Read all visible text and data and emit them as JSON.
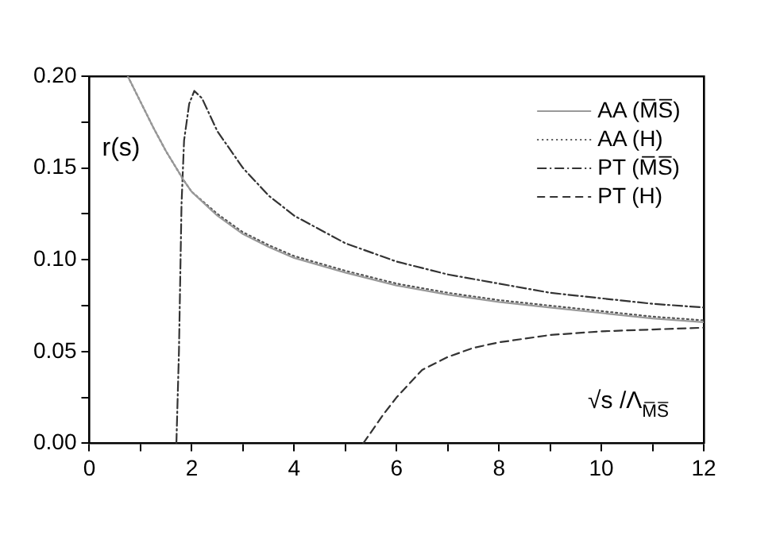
{
  "chart_data": {
    "type": "line",
    "ylabel": "r(s)",
    "xlabel": "√s /Λ$_{M̅S̅}$",
    "xlim": [
      0,
      12
    ],
    "xticks": [
      0,
      {
        "value": 1,
        "label": null
      },
      2,
      {
        "value": 3,
        "label": null
      },
      4,
      {
        "value": 5,
        "label": null
      },
      6,
      {
        "value": 7,
        "label": null
      },
      8,
      {
        "value": 9,
        "label": null
      },
      10,
      {
        "value": 11,
        "label": null
      },
      12
    ],
    "ylim": [
      0,
      0.2
    ],
    "yticks": [
      {
        "value": 0,
        "label": "0.00"
      },
      {
        "value": 0.025,
        "label": null
      },
      {
        "value": 0.05,
        "label": "0.05"
      },
      {
        "value": 0.075,
        "label": null
      },
      {
        "value": 0.1,
        "label": "0.10"
      },
      {
        "value": 0.125,
        "label": null
      },
      {
        "value": 0.15,
        "label": "0.15"
      },
      {
        "value": 0.175,
        "label": null
      },
      {
        "value": 0.2,
        "label": "0.20"
      }
    ],
    "grid": false,
    "legend": "top right",
    "marker": "none",
    "series": [
      {
        "name": "AA (M̅S̅)",
        "color": "#999999",
        "line_style": "solid",
        "x": [
          0.75,
          1,
          1.25,
          1.5,
          1.85,
          2,
          2.5,
          3,
          3.5,
          4,
          5,
          6,
          7,
          8,
          9,
          10,
          11,
          12
        ],
        "values": [
          0.2,
          0.186,
          0.172,
          0.159,
          0.143,
          0.137,
          0.124,
          0.114,
          0.107,
          0.101,
          0.093,
          0.086,
          0.081,
          0.077,
          0.074,
          0.071,
          0.068,
          0.066
        ]
      },
      {
        "name": "AA (H)",
        "color": "#555555",
        "line_style": "dotted",
        "x": [
          0.75,
          1,
          1.25,
          1.5,
          1.85,
          2,
          2.5,
          3,
          3.5,
          4,
          5,
          6,
          7,
          8,
          9,
          10,
          11,
          12
        ],
        "values": [
          0.2,
          0.186,
          0.172,
          0.159,
          0.143,
          0.137,
          0.125,
          0.115,
          0.108,
          0.102,
          0.094,
          0.087,
          0.082,
          0.078,
          0.075,
          0.072,
          0.069,
          0.067
        ]
      },
      {
        "name": "PT (M̅S̅)",
        "color": "#333333",
        "line_style": "dashdot",
        "x": [
          1.7,
          1.75,
          1.8,
          1.85,
          1.95,
          2.05,
          2.2,
          2.5,
          3,
          3.5,
          4,
          5,
          6,
          7,
          8,
          9,
          10,
          11,
          12
        ],
        "values": [
          0,
          0.05,
          0.13,
          0.165,
          0.185,
          0.192,
          0.188,
          0.17,
          0.15,
          0.135,
          0.124,
          0.109,
          0.099,
          0.092,
          0.087,
          0.082,
          0.079,
          0.076,
          0.074
        ]
      },
      {
        "name": "PT (H)",
        "color": "#333333",
        "line_style": "dashed",
        "x": [
          5.35,
          5.5,
          5.75,
          6,
          6.5,
          7,
          7.5,
          8,
          9,
          10,
          11,
          12
        ],
        "values": [
          0,
          0.006,
          0.016,
          0.025,
          0.04,
          0.047,
          0.052,
          0.055,
          0.059,
          0.061,
          0.062,
          0.063
        ]
      }
    ]
  }
}
